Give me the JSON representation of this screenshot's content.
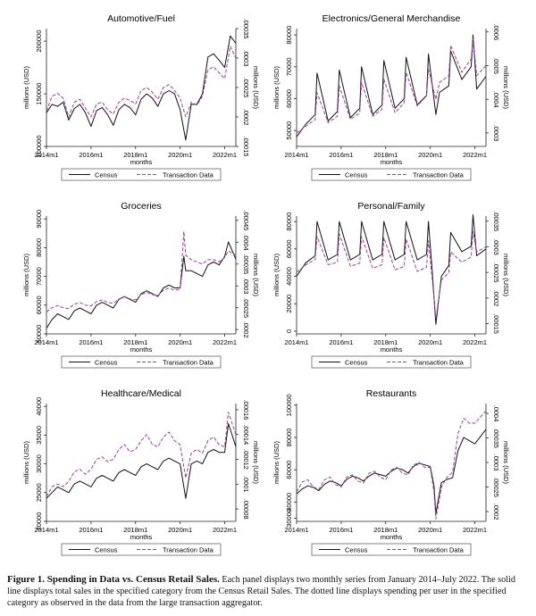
{
  "caption": {
    "lead": "Figure 1. Spending in Data vs. Census Retail Sales.",
    "text": " Each panel displays two monthly series from January 2014–July 2022. The solid line displays total sales in the specified category from the Census Retail Sales. The dotted line displays spending per user in the specified category as observed in the data from the large transaction aggregator."
  },
  "colors": {
    "census": "#111111",
    "transaction": "#9b3f9b"
  },
  "chart_data": [
    {
      "type": "line",
      "title": "Automotive/Fuel",
      "xlabel": "months",
      "ylabel": "millions (USD)",
      "y2label": "millions (USD)",
      "xticks": [
        "2014m1",
        "2016m1",
        "2018m1",
        "2020m1",
        "2022m1"
      ],
      "yticks": [
        "100000",
        "150000",
        "200000"
      ],
      "y2ticks": [
        ".00015",
        ".0002",
        ".00025",
        ".0003",
        ".00035"
      ],
      "ylim": [
        100000,
        212000
      ],
      "y2lim": [
        0.00015,
        0.00035
      ],
      "legend": [
        "Census",
        "Transaction Data"
      ],
      "x": [
        "2014m1",
        "2014m4",
        "2014m7",
        "2014m10",
        "2015m1",
        "2015m4",
        "2015m7",
        "2015m10",
        "2016m1",
        "2016m4",
        "2016m7",
        "2016m10",
        "2017m1",
        "2017m4",
        "2017m7",
        "2017m10",
        "2018m1",
        "2018m4",
        "2018m7",
        "2018m10",
        "2019m1",
        "2019m4",
        "2019m7",
        "2019m10",
        "2020m1",
        "2020m4",
        "2020m7",
        "2020m10",
        "2021m1",
        "2021m4",
        "2021m7",
        "2021m10",
        "2022m1",
        "2022m4",
        "2022m7"
      ],
      "series": [
        {
          "name": "Census",
          "axis": "left",
          "values": [
            132000,
            140000,
            138000,
            142000,
            125000,
            136000,
            140000,
            132000,
            119000,
            134000,
            137000,
            130000,
            120000,
            135000,
            140000,
            137000,
            130000,
            145000,
            150000,
            146000,
            138000,
            150000,
            153000,
            150000,
            135000,
            106000,
            140000,
            140000,
            150000,
            185000,
            188000,
            182000,
            175000,
            205000,
            198000
          ]
        },
        {
          "name": "Transaction Data",
          "axis": "right",
          "values": [
            0.00021,
            0.000235,
            0.00024,
            0.000232,
            0.0002,
            0.000225,
            0.00023,
            0.000215,
            0.0002,
            0.000222,
            0.000225,
            0.000212,
            0.000205,
            0.000225,
            0.000232,
            0.000228,
            0.000222,
            0.000245,
            0.00025,
            0.000242,
            0.00023,
            0.00025,
            0.000255,
            0.000245,
            0.000232,
            0.0002,
            0.000225,
            0.00022,
            0.000235,
            0.00028,
            0.000285,
            0.000275,
            0.000265,
            0.00032,
            0.0003
          ]
        }
      ]
    },
    {
      "type": "line",
      "title": "Electronics/General Merchandise",
      "xlabel": "months",
      "ylabel": "millions (USD)",
      "y2label": "millions (USD)",
      "xticks": [
        "2014m1",
        "2016m1",
        "2018m1",
        "2020m1",
        "2022m1"
      ],
      "yticks": [
        "50000",
        "60000",
        "70000",
        "80000"
      ],
      "y2ticks": [
        ".0003",
        ".0004",
        ".0005",
        ".0006"
      ],
      "ylim": [
        45000,
        82000
      ],
      "y2lim": [
        0.00026,
        0.00061
      ],
      "legend": [
        "Census",
        "Transaction Data"
      ],
      "x": [
        "2014m1",
        "2014m6",
        "2014m11",
        "2014m12",
        "2015m6",
        "2015m11",
        "2015m12",
        "2016m6",
        "2016m11",
        "2016m12",
        "2017m6",
        "2017m11",
        "2017m12",
        "2018m6",
        "2018m11",
        "2018m12",
        "2019m6",
        "2019m11",
        "2019m12",
        "2020m4",
        "2020m6",
        "2020m11",
        "2020m12",
        "2021m6",
        "2021m11",
        "2021m12",
        "2022m2",
        "2022m7"
      ],
      "series": [
        {
          "name": "Census",
          "axis": "left",
          "values": [
            48000,
            52000,
            55000,
            68000,
            53000,
            56000,
            69000,
            54000,
            57000,
            70000,
            55000,
            58000,
            72000,
            57000,
            60000,
            73000,
            58000,
            61000,
            74000,
            55000,
            62000,
            64000,
            75000,
            66000,
            70000,
            80000,
            63000,
            67000
          ]
        },
        {
          "name": "Transaction Data",
          "axis": "right",
          "values": [
            0.0003,
            0.00032,
            0.00034,
            0.00042,
            0.00033,
            0.00035,
            0.00044,
            0.00034,
            0.00036,
            0.00045,
            0.00035,
            0.00037,
            0.00046,
            0.00036,
            0.00039,
            0.00048,
            0.00038,
            0.00041,
            0.00049,
            0.0004,
            0.00045,
            0.00047,
            0.00056,
            0.00048,
            0.00052,
            0.00058,
            0.00047,
            0.0005
          ]
        }
      ]
    },
    {
      "type": "line",
      "title": "Groceries",
      "xlabel": "months",
      "ylabel": "millions (USD)",
      "y2label": "millions (USD)",
      "xticks": [
        "2014m1",
        "2016m1",
        "2018m1",
        "2020m1",
        "2022m1"
      ],
      "yticks": [
        "50000",
        "60000",
        "70000",
        "80000",
        "90000"
      ],
      "y2ticks": [
        ".0002",
        ".00025",
        ".0003",
        ".00035",
        ".0004",
        ".00045"
      ],
      "ylim": [
        50000,
        91000
      ],
      "y2lim": [
        0.00019,
        0.00046
      ],
      "legend": [
        "Census",
        "Transaction Data"
      ],
      "x": [
        "2014m1",
        "2014m4",
        "2014m7",
        "2014m10",
        "2015m1",
        "2015m4",
        "2015m7",
        "2015m10",
        "2016m1",
        "2016m4",
        "2016m7",
        "2016m10",
        "2017m1",
        "2017m4",
        "2017m7",
        "2017m10",
        "2018m1",
        "2018m4",
        "2018m7",
        "2018m10",
        "2019m1",
        "2019m4",
        "2019m7",
        "2019m10",
        "2020m1",
        "2020m3",
        "2020m4",
        "2020m7",
        "2020m10",
        "2021m1",
        "2021m4",
        "2021m7",
        "2021m10",
        "2022m1",
        "2022m3",
        "2022m7"
      ],
      "series": [
        {
          "name": "Census",
          "axis": "left",
          "values": [
            52000,
            55000,
            57000,
            56000,
            55000,
            58000,
            59000,
            58000,
            57000,
            60000,
            61000,
            60000,
            59000,
            62000,
            63000,
            62000,
            61000,
            64000,
            65000,
            64000,
            63000,
            66000,
            67000,
            66000,
            66000,
            77000,
            72000,
            72000,
            71000,
            70000,
            74000,
            75000,
            74000,
            77000,
            82000,
            76000
          ]
        },
        {
          "name": "Transaction Data",
          "axis": "right",
          "values": [
            0.00024,
            0.00025,
            0.000255,
            0.00025,
            0.000248,
            0.000258,
            0.000262,
            0.000256,
            0.000254,
            0.000264,
            0.000268,
            0.000262,
            0.00026,
            0.00027,
            0.000275,
            0.00027,
            0.000268,
            0.00028,
            0.000285,
            0.00028,
            0.000278,
            0.00029,
            0.000295,
            0.00029,
            0.000292,
            0.000425,
            0.00037,
            0.00036,
            0.000355,
            0.00035,
            0.00036,
            0.00036,
            0.000355,
            0.000365,
            0.00038,
            0.00037
          ]
        }
      ]
    },
    {
      "type": "line",
      "title": "Personal/Family",
      "xlabel": "months",
      "ylabel": "millions (USD)",
      "y2label": "millions (USD)",
      "xticks": [
        "2014m1",
        "2016m1",
        "2018m1",
        "2020m1",
        "2022m1"
      ],
      "yticks": [
        "0",
        "20000",
        "40000",
        "60000",
        "80000"
      ],
      "y2ticks": [
        ".00015",
        ".0002",
        ".00025",
        ".0003",
        ".00035"
      ],
      "ylim": [
        -2000,
        84000
      ],
      "y2lim": [
        0.00013,
        0.00036
      ],
      "legend": [
        "Census",
        "Transaction Data"
      ],
      "x": [
        "2014m1",
        "2014m6",
        "2014m11",
        "2014m12",
        "2015m6",
        "2015m11",
        "2015m12",
        "2016m6",
        "2016m11",
        "2016m12",
        "2017m6",
        "2017m11",
        "2017m12",
        "2018m6",
        "2018m11",
        "2018m12",
        "2019m6",
        "2019m11",
        "2019m12",
        "2020m2",
        "2020m4",
        "2020m7",
        "2020m11",
        "2020m12",
        "2021m6",
        "2021m11",
        "2021m12",
        "2022m2",
        "2022m7"
      ],
      "series": [
        {
          "name": "Census",
          "axis": "left",
          "values": [
            40000,
            50000,
            55000,
            80000,
            52000,
            56000,
            80000,
            52000,
            56000,
            80000,
            52000,
            56000,
            80000,
            52000,
            56000,
            80000,
            52000,
            56000,
            80000,
            45000,
            5000,
            40000,
            48000,
            72000,
            58000,
            62000,
            85000,
            55000,
            60000
          ]
        },
        {
          "name": "Transaction Data",
          "axis": "right",
          "values": [
            0.00025,
            0.000265,
            0.000275,
            0.00032,
            0.000265,
            0.00027,
            0.000325,
            0.000262,
            0.000268,
            0.00032,
            0.000258,
            0.000265,
            0.000318,
            0.000255,
            0.000262,
            0.000315,
            0.000252,
            0.00026,
            0.000312,
            0.00024,
            0.00016,
            0.000235,
            0.00025,
            0.00029,
            0.00027,
            0.00028,
            0.00033,
            0.00029,
            0.0003
          ]
        }
      ]
    },
    {
      "type": "line",
      "title": "Healthcare/Medical",
      "xlabel": "months",
      "ylabel": "millions (USD)",
      "y2label": "millions (USD)",
      "xticks": [
        "2014m1",
        "2016m1",
        "2018m1",
        "2020m1",
        "2022m1"
      ],
      "yticks": [
        "20000",
        "25000",
        "30000",
        "35000",
        "40000"
      ],
      "y2ticks": [
        ".00008",
        ".0001",
        ".00012",
        ".00014",
        ".00016"
      ],
      "ylim": [
        20000,
        40500
      ],
      "y2lim": [
        7e-05,
        0.000165
      ],
      "legend": [
        "Census",
        "Transaction Data"
      ],
      "x": [
        "2014m1",
        "2014m4",
        "2014m7",
        "2014m10",
        "2015m1",
        "2015m4",
        "2015m7",
        "2015m10",
        "2016m1",
        "2016m4",
        "2016m7",
        "2016m10",
        "2017m1",
        "2017m4",
        "2017m7",
        "2017m10",
        "2018m1",
        "2018m4",
        "2018m7",
        "2018m10",
        "2019m1",
        "2019m4",
        "2019m7",
        "2019m10",
        "2020m1",
        "2020m4",
        "2020m7",
        "2020m10",
        "2021m1",
        "2021m4",
        "2021m7",
        "2021m10",
        "2022m1",
        "2022m3",
        "2022m7"
      ],
      "series": [
        {
          "name": "Census",
          "axis": "left",
          "values": [
            24000,
            25000,
            26000,
            25500,
            25000,
            26500,
            27000,
            26500,
            26000,
            27500,
            28000,
            27500,
            27000,
            28500,
            29000,
            28500,
            28000,
            29500,
            30000,
            29500,
            29000,
            30500,
            31000,
            30500,
            30000,
            24000,
            30000,
            30500,
            30000,
            32000,
            32500,
            32000,
            32000,
            37000,
            33000
          ]
        },
        {
          "name": "Transaction Data",
          "axis": "right",
          "values": [
            9e-05,
            9.8e-05,
            0.0001,
            9.8e-05,
            0.000102,
            0.00011,
            0.000112,
            0.000108,
            0.000112,
            0.00012,
            0.000122,
            0.000118,
            0.00012,
            0.000128,
            0.000132,
            0.000126,
            0.000128,
            0.000135,
            0.00014,
            0.000132,
            0.00013,
            0.000138,
            0.000142,
            0.000135,
            0.000132,
            0.000105,
            0.000125,
            0.000128,
            0.000125,
            0.000135,
            0.000138,
            0.000132,
            0.00013,
            0.000158,
            0.00014
          ]
        }
      ]
    },
    {
      "type": "line",
      "title": "Restaurants",
      "xlabel": "months",
      "ylabel": "millions (USD)",
      "y2label": "millions (USD)",
      "xticks": [
        "2014m1",
        "2016m1",
        "2018m1",
        "2020m1",
        "2022m1"
      ],
      "yticks": [
        "30000",
        "40000",
        "60000",
        "80000",
        "100000"
      ],
      "y2ticks": [
        ".0002",
        ".00025",
        ".0003",
        ".00035",
        ".0004"
      ],
      "ylim": [
        28000,
        101000
      ],
      "y2lim": [
        0.00018,
        0.00042
      ],
      "legend": [
        "Census",
        "Transaction Data"
      ],
      "x": [
        "2014m1",
        "2014m4",
        "2014m7",
        "2014m10",
        "2015m1",
        "2015m4",
        "2015m7",
        "2015m10",
        "2016m1",
        "2016m4",
        "2016m7",
        "2016m10",
        "2017m1",
        "2017m4",
        "2017m7",
        "2017m10",
        "2018m1",
        "2018m4",
        "2018m7",
        "2018m10",
        "2019m1",
        "2019m4",
        "2019m7",
        "2019m10",
        "2020m1",
        "2020m3",
        "2020m4",
        "2020m7",
        "2020m10",
        "2021m1",
        "2021m4",
        "2021m7",
        "2021m10",
        "2022m1",
        "2022m7"
      ],
      "series": [
        {
          "name": "Census",
          "axis": "left",
          "values": [
            45000,
            48000,
            50000,
            49000,
            47000,
            51000,
            53000,
            52000,
            50000,
            54000,
            56000,
            55000,
            53000,
            56000,
            58000,
            57000,
            56000,
            59000,
            61000,
            60000,
            58000,
            62000,
            64000,
            63000,
            62000,
            50000,
            33000,
            52000,
            54000,
            55000,
            72000,
            80000,
            78000,
            76000,
            85000
          ]
        },
        {
          "name": "Transaction Data",
          "axis": "right",
          "values": [
            0.00024,
            0.00026,
            0.000265,
            0.00025,
            0.000245,
            0.000265,
            0.00027,
            0.000255,
            0.00025,
            0.00027,
            0.000275,
            0.000262,
            0.000258,
            0.000278,
            0.000282,
            0.00027,
            0.000265,
            0.000285,
            0.00029,
            0.000278,
            0.000275,
            0.000295,
            0.0003,
            0.00029,
            0.00029,
            0.00024,
            0.000185,
            0.00025,
            0.00027,
            0.00028,
            0.00036,
            0.00039,
            0.00038,
            0.00038,
            0.000405
          ]
        }
      ]
    }
  ]
}
